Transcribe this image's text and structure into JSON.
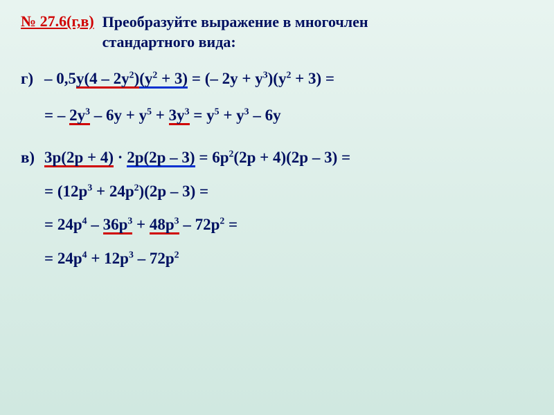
{
  "colors": {
    "text": "#001060",
    "accent_red": "#d00000",
    "accent_blue": "#0030d0",
    "bg_top": "#e8f4f0",
    "bg_bottom": "#d0e8e0"
  },
  "typography": {
    "font_family": "Georgia, Times New Roman, serif",
    "title_fontsize": 22,
    "math_fontsize": 23,
    "weight": "bold"
  },
  "header": {
    "problem_number": "№ 27.6(г,в)",
    "task_line1": "Преобразуйте выражение в многочлен",
    "task_line2": "стандартного вида:"
  },
  "part_g": {
    "label": "г)",
    "line1": {
      "seg1_plain": "– 0,5",
      "seg1_ul_red": "y(4 – 2y²)",
      "seg1_ul_blue": "(y² + 3)",
      "eq": " = ",
      "seg2": "(– 2y + y³)(y² + 3) ="
    },
    "line2": {
      "leading": "= – ",
      "t1_red": "2y³",
      "mid1": " – 6y + y⁵ + ",
      "t2_red": "3y³",
      "eq": " = ",
      "result": "y⁵ + y³ – 6y"
    }
  },
  "part_v": {
    "label": "в)",
    "line1": {
      "seg1_red": "3p(2p + 4)",
      "dot": " · ",
      "seg1_blue": "2p(2p – 3)",
      "eq": " = ",
      "rhs": "6p²(2p + 4)(2p – 3) ="
    },
    "line2": "= (12p³ + 24p²)(2p – 3) =",
    "line3": {
      "pre": "= 24p⁴ – ",
      "t1_red": "36p³",
      "mid": " + ",
      "t2_red": "48p³",
      "post": " – 72p² ="
    },
    "line4": "= 24p⁴ + 12p³ – 72p²"
  }
}
